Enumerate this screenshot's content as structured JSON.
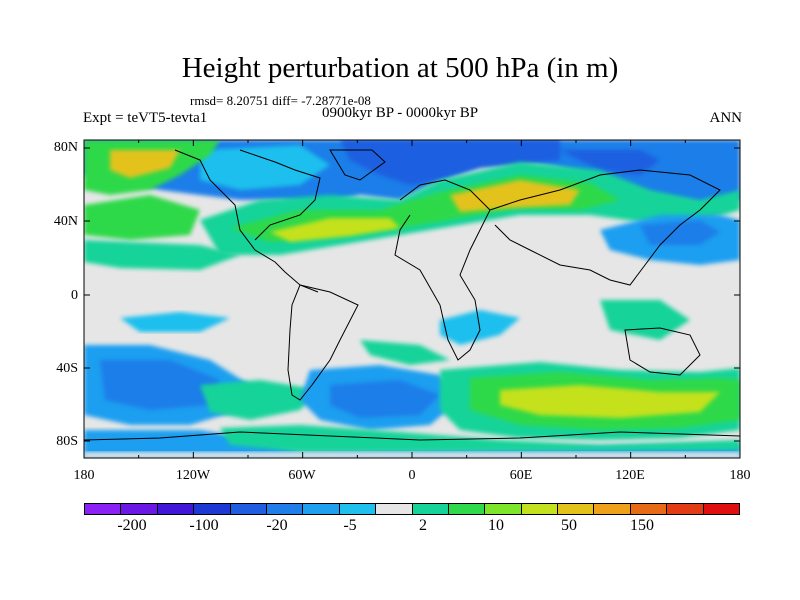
{
  "title": "Height perturbation at 500 hPa (in m)",
  "stats": "rmsd= 8.20751 diff= -7.28771e-08",
  "experiment": "Expt = teVT5-tevta1",
  "period": "0900kyr BP - 0000kyr BP",
  "season": "ANN",
  "lat_labels": [
    "80N",
    "40N",
    "0",
    "40S",
    "80S"
  ],
  "lon_labels": [
    "180",
    "120W",
    "60W",
    "0",
    "60E",
    "120E",
    "180"
  ],
  "colorbar": {
    "labels": [
      "-200",
      "-100",
      "-20",
      "-5",
      "2",
      "10",
      "50",
      "150"
    ],
    "colors": [
      "#8a22f5",
      "#6a18e6",
      "#4216d8",
      "#1e38d4",
      "#1f5ee0",
      "#1f7ee9",
      "#1e9ff0",
      "#1fbfee",
      "#e6e6e6",
      "#16d39a",
      "#2ed94a",
      "#7ee62a",
      "#c4e11d",
      "#e3c21c",
      "#f0a11a",
      "#e76b16",
      "#e33c14",
      "#e01010"
    ]
  },
  "map_colors": {
    "neutral": "#e6e6e6",
    "blue_dark": "#1f5ee0",
    "blue_mid": "#1f7ee9",
    "blue_light": "#1e9ff0",
    "cyan": "#1fbfee",
    "teal": "#16d39a",
    "green": "#2ed94a",
    "yellowgreen": "#c4e11d",
    "yellow": "#e3c21c",
    "orange": "#f0a11a"
  }
}
